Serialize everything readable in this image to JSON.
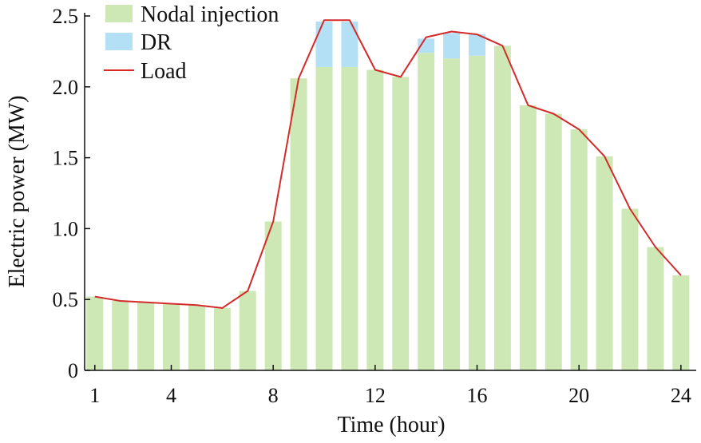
{
  "chart_data": {
    "type": "bar",
    "xlabel": "Time (hour)",
    "ylabel": "Electric power (MW)",
    "xlim": [
      0.6,
      24.6
    ],
    "ylim": [
      0,
      2.5
    ],
    "x_ticks": [
      1,
      4,
      8,
      12,
      16,
      20,
      24
    ],
    "y_ticks": [
      0,
      0.5,
      1.0,
      1.5,
      2.0,
      2.5
    ],
    "y_tick_labels": [
      "0",
      "0.5",
      "1.0",
      "1.5",
      "2.0",
      "2.5"
    ],
    "x": [
      1,
      2,
      3,
      4,
      5,
      6,
      7,
      8,
      9,
      10,
      11,
      12,
      13,
      14,
      15,
      16,
      17,
      18,
      19,
      20,
      21,
      22,
      23,
      24
    ],
    "series": [
      {
        "name": "Nodal injection",
        "kind": "bar",
        "color": "#cde8b4",
        "values": [
          0.52,
          0.49,
          0.48,
          0.47,
          0.46,
          0.44,
          0.56,
          1.05,
          2.06,
          2.14,
          2.14,
          2.12,
          2.07,
          2.24,
          2.2,
          2.22,
          2.29,
          1.87,
          1.81,
          1.7,
          1.51,
          1.14,
          0.87,
          0.67
        ]
      },
      {
        "name": "DR",
        "kind": "stacked-bar",
        "color": "#b3e0f5",
        "values": [
          0,
          0,
          0,
          0,
          0,
          0,
          0,
          0,
          0,
          0.32,
          0.32,
          0,
          0,
          0.1,
          0.18,
          0.15,
          0,
          0,
          0,
          0,
          0,
          0,
          0,
          0
        ]
      },
      {
        "name": "Load",
        "kind": "line",
        "color": "#d42a2a",
        "values": [
          0.52,
          0.49,
          0.48,
          0.47,
          0.46,
          0.44,
          0.56,
          1.05,
          2.06,
          2.47,
          2.47,
          2.12,
          2.07,
          2.35,
          2.39,
          2.37,
          2.29,
          1.87,
          1.81,
          1.7,
          1.51,
          1.14,
          0.87,
          0.67
        ]
      }
    ],
    "legend_position": "top-left"
  }
}
